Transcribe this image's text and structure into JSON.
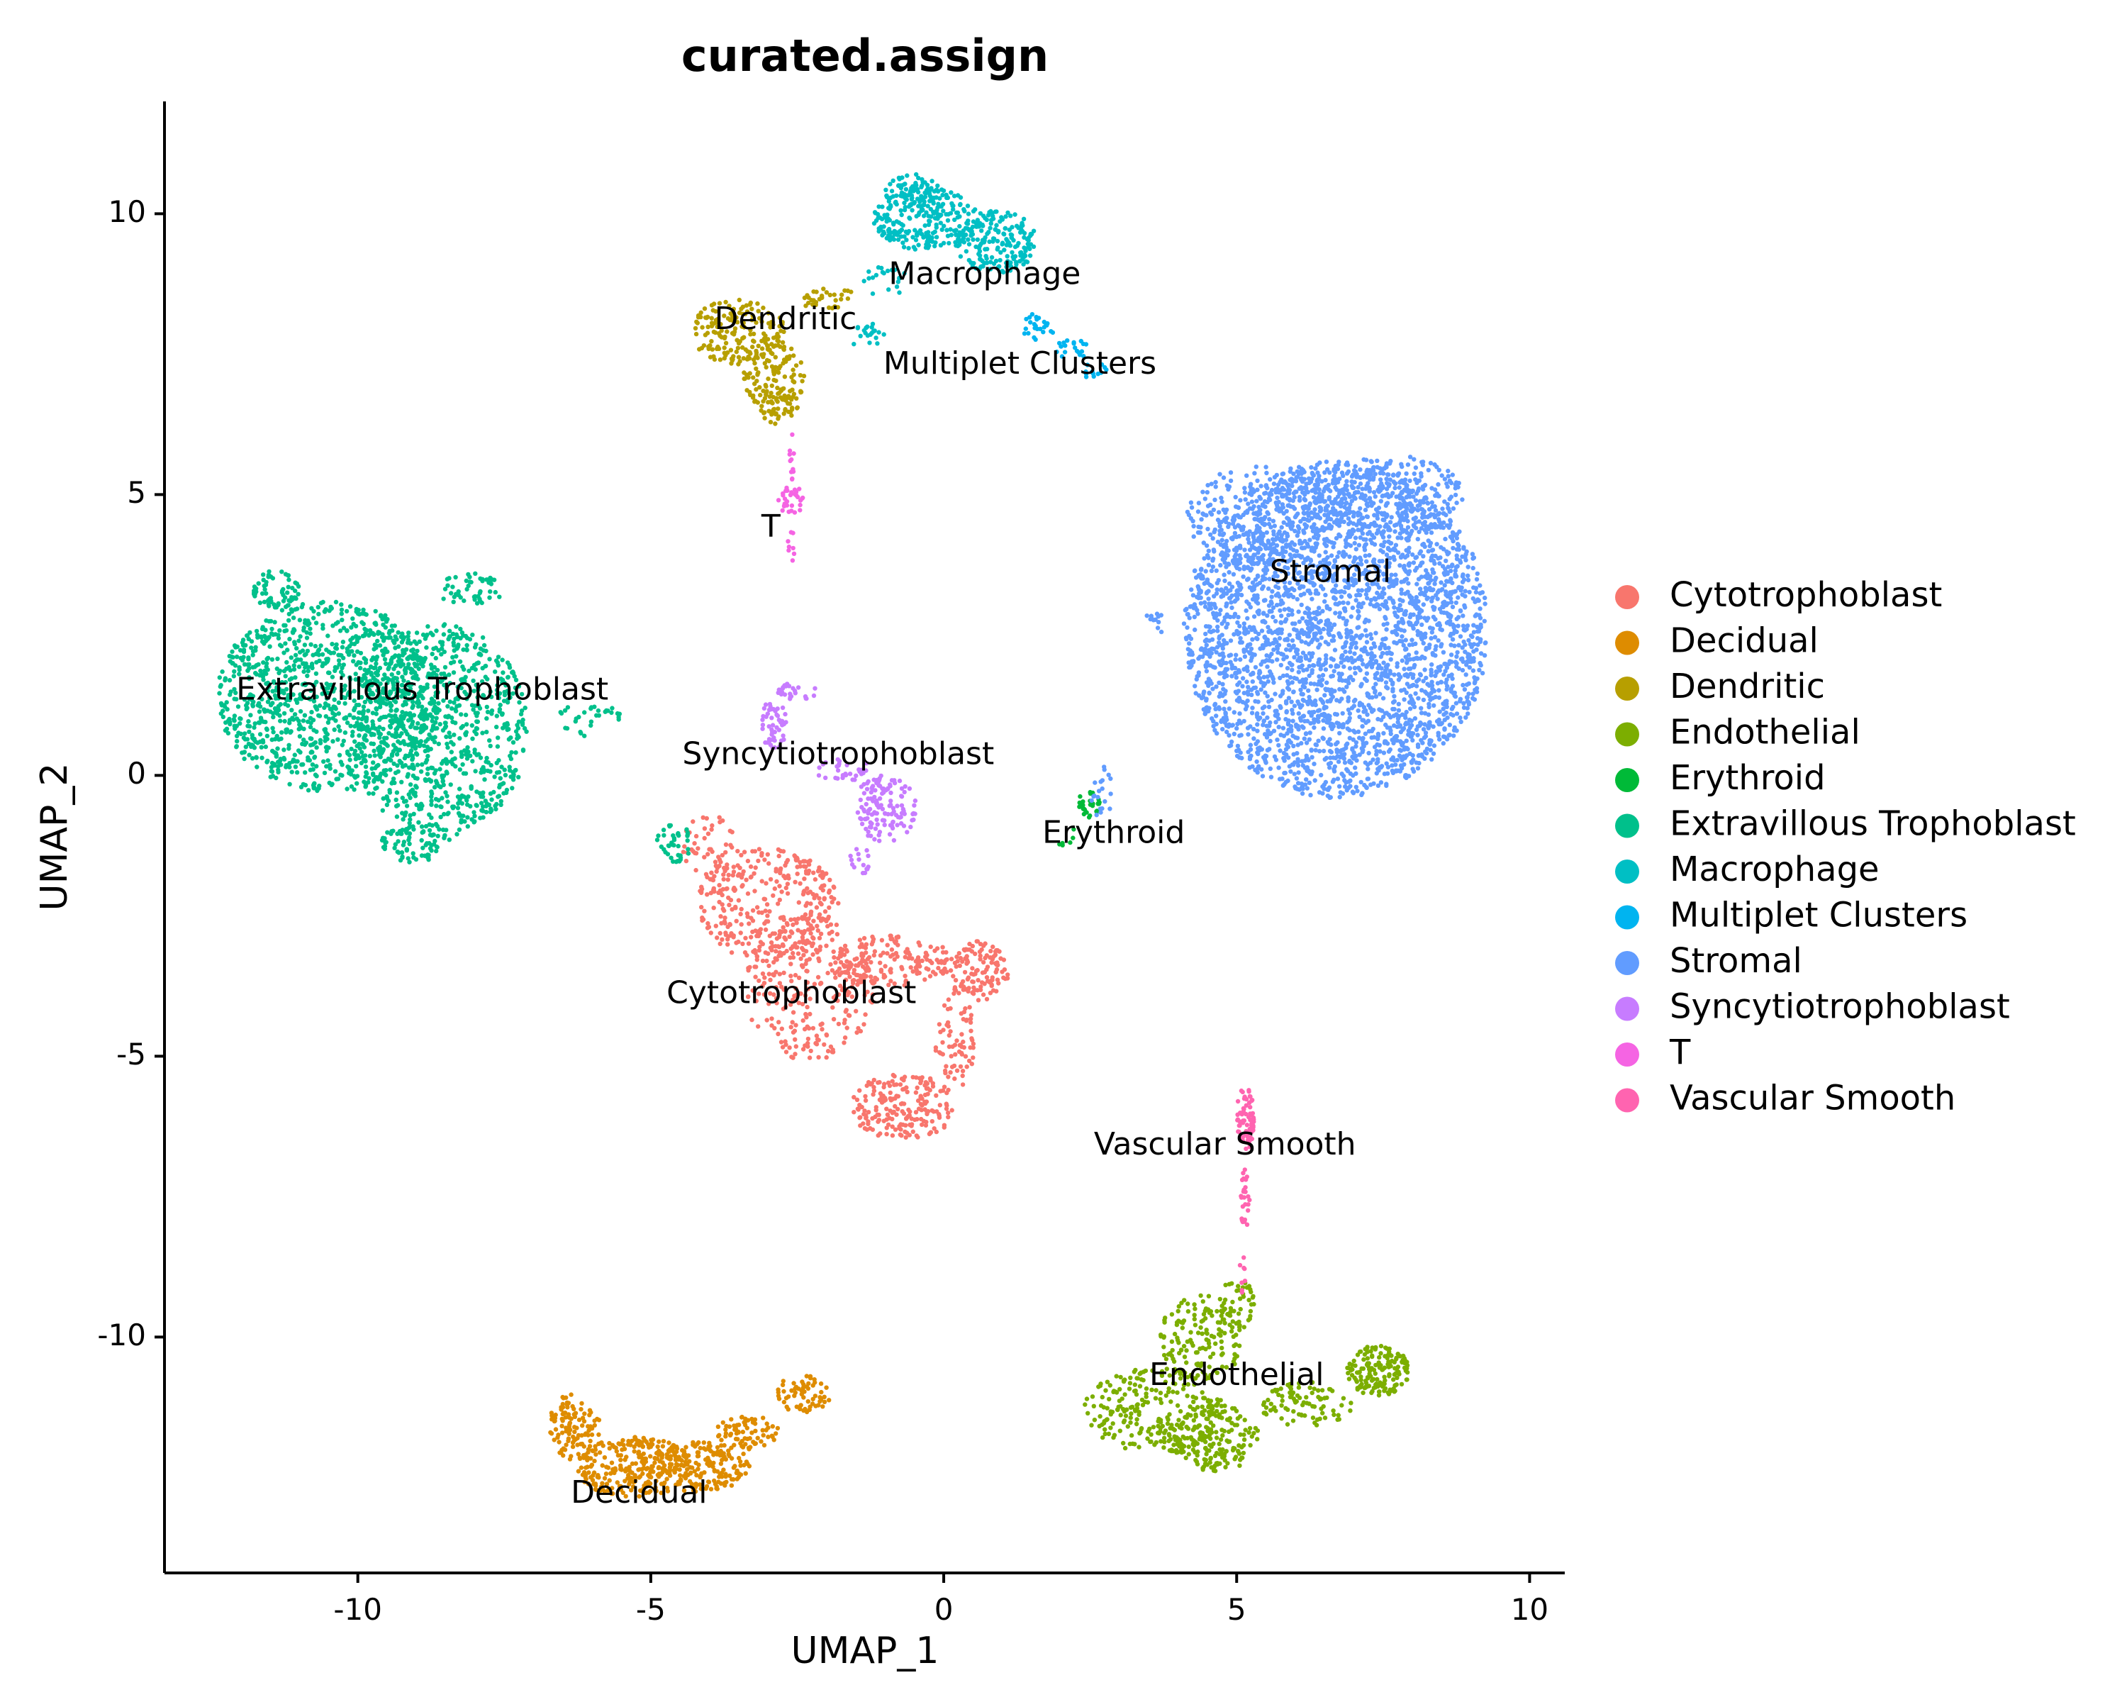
{
  "chart_data": {
    "type": "scatter",
    "title": "curated.assign",
    "xlabel": "UMAP_1",
    "ylabel": "UMAP_2",
    "xlim": [
      -13.3,
      10.6
    ],
    "ylim": [
      -14.2,
      12.0
    ],
    "xticks": [
      -10,
      -5,
      0,
      5,
      10
    ],
    "yticks": [
      -10,
      -5,
      0,
      5,
      10
    ],
    "xtick_labels": [
      "-10",
      "-5",
      "0",
      "5",
      "10"
    ],
    "ytick_labels": [
      "-10",
      "-5",
      "0",
      "5",
      "10"
    ],
    "grid": false,
    "legend_position": "right",
    "series": [
      {
        "name": "Cytotrophoblast",
        "color": "#F8766D",
        "cluster_label": {
          "text": "Cytotrophoblast",
          "x": -2.6,
          "y": -3.9
        },
        "blobs": [
          {
            "cx": -3.0,
            "cy": -2.3,
            "rx": 1.2,
            "ry": 1.0,
            "n": 330
          },
          {
            "cx": -2.3,
            "cy": -3.8,
            "rx": 1.1,
            "ry": 1.3,
            "n": 260
          },
          {
            "cx": -0.9,
            "cy": -3.3,
            "rx": 1.1,
            "ry": 0.45,
            "n": 170
          },
          {
            "cx": 0.6,
            "cy": -3.5,
            "rx": 0.5,
            "ry": 0.55,
            "n": 120
          },
          {
            "cx": -0.7,
            "cy": -5.9,
            "rx": 0.9,
            "ry": 0.6,
            "n": 200
          },
          {
            "cx": 0.2,
            "cy": -4.7,
            "rx": 0.35,
            "ry": 0.9,
            "n": 70
          },
          {
            "cx": -4.0,
            "cy": -1.3,
            "rx": 0.5,
            "ry": 0.6,
            "n": 50
          }
        ]
      },
      {
        "name": "Decidual",
        "color": "#DE8C00",
        "cluster_label": {
          "text": "Decidual",
          "x": -5.2,
          "y": -12.8
        },
        "blobs": [
          {
            "cx": -6.3,
            "cy": -11.6,
            "rx": 0.45,
            "ry": 0.6,
            "n": 110
          },
          {
            "cx": -5.3,
            "cy": -12.3,
            "rx": 1.0,
            "ry": 0.55,
            "n": 260
          },
          {
            "cx": -4.2,
            "cy": -12.3,
            "rx": 0.9,
            "ry": 0.45,
            "n": 170
          },
          {
            "cx": -3.3,
            "cy": -11.7,
            "rx": 0.6,
            "ry": 0.3,
            "n": 70
          },
          {
            "cx": -2.4,
            "cy": -11.0,
            "rx": 0.5,
            "ry": 0.35,
            "n": 60
          }
        ]
      },
      {
        "name": "Dendritic",
        "color": "#B79F00",
        "cluster_label": {
          "text": "Dendritic",
          "x": -2.7,
          "y": 8.1
        },
        "blobs": [
          {
            "cx": -3.5,
            "cy": 7.9,
            "rx": 0.8,
            "ry": 0.6,
            "n": 170
          },
          {
            "cx": -2.9,
            "cy": 7.1,
            "rx": 0.55,
            "ry": 0.6,
            "n": 110
          },
          {
            "cx": -2.8,
            "cy": 6.6,
            "rx": 0.35,
            "ry": 0.35,
            "n": 50
          },
          {
            "cx": -2.0,
            "cy": 8.5,
            "rx": 0.5,
            "ry": 0.2,
            "n": 30
          }
        ]
      },
      {
        "name": "Endothelial",
        "color": "#7CAE00",
        "cluster_label": {
          "text": "Endothelial",
          "x": 5.0,
          "y": -10.7
        },
        "blobs": [
          {
            "cx": 3.6,
            "cy": -11.3,
            "rx": 1.2,
            "ry": 0.75,
            "n": 240
          },
          {
            "cx": 4.6,
            "cy": -11.8,
            "rx": 0.8,
            "ry": 0.6,
            "n": 180
          },
          {
            "cx": 4.4,
            "cy": -10.0,
            "rx": 0.75,
            "ry": 0.75,
            "n": 150
          },
          {
            "cx": 5.0,
            "cy": -9.4,
            "rx": 0.3,
            "ry": 0.5,
            "n": 40
          },
          {
            "cx": 7.4,
            "cy": -10.6,
            "rx": 0.55,
            "ry": 0.45,
            "n": 160
          },
          {
            "cx": 6.2,
            "cy": -11.2,
            "rx": 0.8,
            "ry": 0.4,
            "n": 90
          }
        ]
      },
      {
        "name": "Erythroid",
        "color": "#00BA38",
        "cluster_label": {
          "text": "Erythroid",
          "x": 2.9,
          "y": -1.05
        },
        "blobs": [
          {
            "cx": 2.5,
            "cy": -0.5,
            "rx": 0.2,
            "ry": 0.25,
            "n": 30
          },
          {
            "cx": 2.1,
            "cy": -1.1,
            "rx": 0.2,
            "ry": 0.2,
            "n": 6
          }
        ]
      },
      {
        "name": "Extravillous Trophoblast",
        "color": "#00C08B",
        "cluster_label": {
          "text": "Extravillous Trophoblast",
          "x": -8.9,
          "y": 1.5
        },
        "blobs": [
          {
            "cx": -10.5,
            "cy": 1.4,
            "rx": 1.9,
            "ry": 1.7,
            "n": 1100
          },
          {
            "cx": -8.6,
            "cy": 0.8,
            "rx": 1.5,
            "ry": 1.9,
            "n": 800
          },
          {
            "cx": -11.4,
            "cy": 3.3,
            "rx": 0.4,
            "ry": 0.35,
            "n": 70
          },
          {
            "cx": -8.1,
            "cy": 3.3,
            "rx": 0.6,
            "ry": 0.3,
            "n": 50
          },
          {
            "cx": -9.0,
            "cy": -1.2,
            "rx": 0.6,
            "ry": 0.4,
            "n": 80
          },
          {
            "cx": -6.1,
            "cy": 1.0,
            "rx": 0.6,
            "ry": 0.3,
            "n": 30
          },
          {
            "cx": -4.6,
            "cy": -1.2,
            "rx": 0.3,
            "ry": 0.35,
            "n": 40
          }
        ]
      },
      {
        "name": "Macrophage",
        "color": "#00BFC4",
        "cluster_label": {
          "text": "Macrophage",
          "x": 0.7,
          "y": 8.9
        },
        "blobs": [
          {
            "cx": -0.3,
            "cy": 9.9,
            "rx": 0.9,
            "ry": 0.55,
            "n": 250
          },
          {
            "cx": 0.9,
            "cy": 9.5,
            "rx": 0.7,
            "ry": 0.55,
            "n": 180
          },
          {
            "cx": -0.5,
            "cy": 10.4,
            "rx": 0.5,
            "ry": 0.3,
            "n": 70
          },
          {
            "cx": -1.3,
            "cy": 7.8,
            "rx": 0.3,
            "ry": 0.25,
            "n": 20
          },
          {
            "cx": -1.0,
            "cy": 8.8,
            "rx": 0.4,
            "ry": 0.3,
            "n": 20
          }
        ]
      },
      {
        "name": "Multiplet Clusters",
        "color": "#00B4F0",
        "cluster_label": {
          "text": "Multiplet Clusters",
          "x": 1.3,
          "y": 7.3
        },
        "blobs": [
          {
            "cx": 1.6,
            "cy": 8.0,
            "rx": 0.3,
            "ry": 0.25,
            "n": 25
          },
          {
            "cx": 2.2,
            "cy": 7.6,
            "rx": 0.3,
            "ry": 0.2,
            "n": 20
          },
          {
            "cx": 2.6,
            "cy": 7.2,
            "rx": 0.25,
            "ry": 0.15,
            "n": 12
          }
        ]
      },
      {
        "name": "Stromal",
        "color": "#619CFF",
        "cluster_label": {
          "text": "Stromal",
          "x": 6.6,
          "y": 3.6
        },
        "blobs": [
          {
            "cx": 6.7,
            "cy": 2.6,
            "rx": 2.6,
            "ry": 3.0,
            "n": 3200
          },
          {
            "cx": 5.4,
            "cy": 4.6,
            "rx": 1.3,
            "ry": 0.9,
            "n": 250
          },
          {
            "cx": 7.6,
            "cy": 5.0,
            "rx": 1.3,
            "ry": 0.7,
            "n": 250
          },
          {
            "cx": 2.7,
            "cy": -0.3,
            "rx": 0.2,
            "ry": 0.5,
            "n": 20
          },
          {
            "cx": 3.6,
            "cy": 2.7,
            "rx": 0.2,
            "ry": 0.2,
            "n": 12
          }
        ]
      },
      {
        "name": "Syncytiotrophoblast",
        "color": "#C77CFF",
        "cluster_label": {
          "text": "Syncytiotrophoblast",
          "x": -1.8,
          "y": 0.35
        },
        "blobs": [
          {
            "cx": -1.0,
            "cy": -0.6,
            "rx": 0.55,
            "ry": 0.6,
            "n": 130
          },
          {
            "cx": -2.9,
            "cy": 0.9,
            "rx": 0.25,
            "ry": 0.45,
            "n": 50
          },
          {
            "cx": -2.5,
            "cy": 1.5,
            "rx": 0.35,
            "ry": 0.15,
            "n": 25
          },
          {
            "cx": -1.7,
            "cy": 0.1,
            "rx": 0.5,
            "ry": 0.2,
            "n": 30
          },
          {
            "cx": -1.4,
            "cy": -1.5,
            "rx": 0.2,
            "ry": 0.25,
            "n": 15
          }
        ]
      },
      {
        "name": "T",
        "color": "#F564E3",
        "cluster_label": {
          "text": "T",
          "x": -2.95,
          "y": 4.4
        },
        "blobs": [
          {
            "cx": -2.6,
            "cy": 4.9,
            "rx": 0.22,
            "ry": 0.3,
            "n": 30
          },
          {
            "cx": -2.6,
            "cy": 5.7,
            "rx": 0.06,
            "ry": 0.5,
            "n": 12
          },
          {
            "cx": -2.6,
            "cy": 4.1,
            "rx": 0.06,
            "ry": 0.3,
            "n": 8
          }
        ]
      },
      {
        "name": "Vascular Smooth",
        "color": "#FF64B0",
        "cluster_label": {
          "text": "Vascular Smooth",
          "x": 4.8,
          "y": -6.6
        },
        "blobs": [
          {
            "cx": 5.15,
            "cy": -6.1,
            "rx": 0.15,
            "ry": 0.6,
            "n": 70
          },
          {
            "cx": 5.15,
            "cy": -7.6,
            "rx": 0.08,
            "ry": 0.6,
            "n": 25
          },
          {
            "cx": 5.1,
            "cy": -8.9,
            "rx": 0.05,
            "ry": 0.4,
            "n": 8
          }
        ]
      }
    ]
  }
}
